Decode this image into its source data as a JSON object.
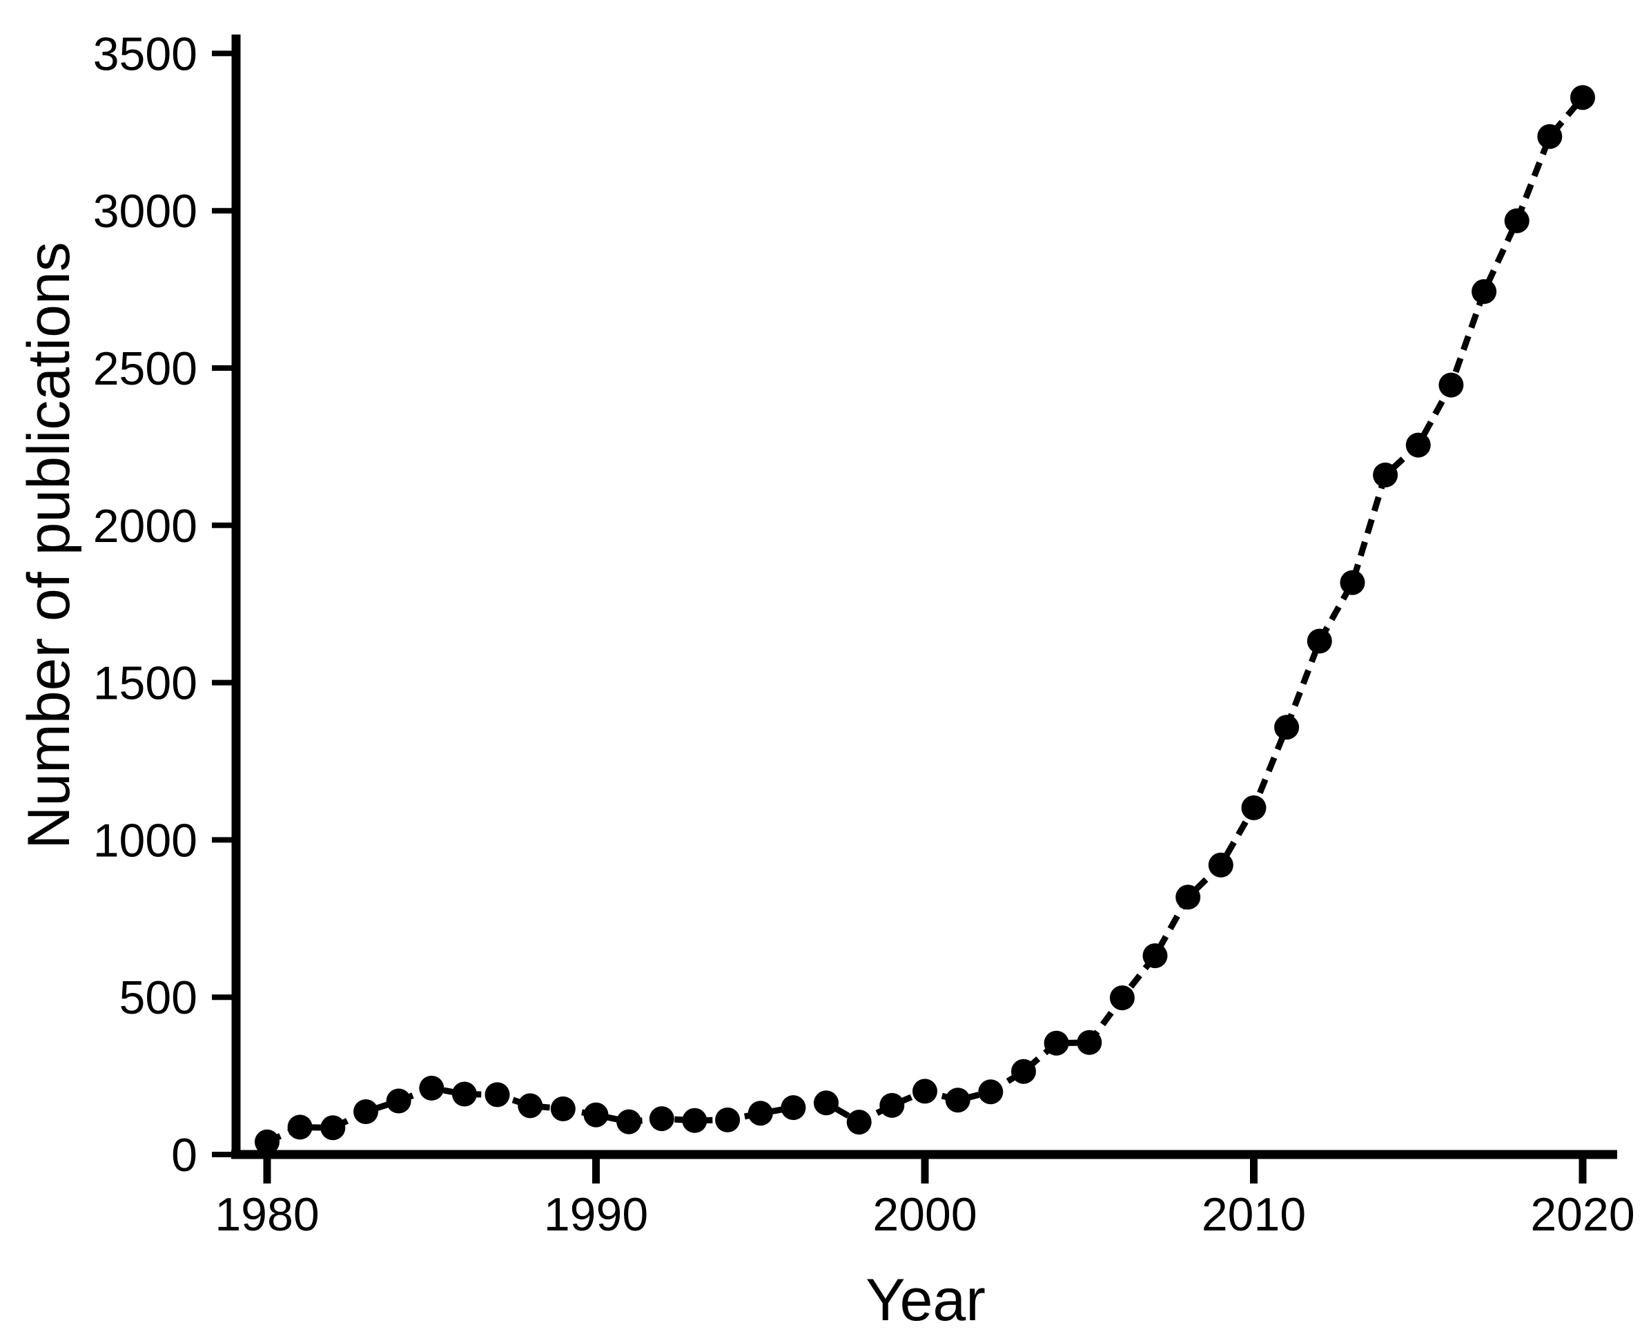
{
  "chart_data": {
    "type": "line",
    "title": "",
    "xlabel": "Year",
    "ylabel": "Number of publications",
    "x": [
      1980,
      1981,
      1982,
      1983,
      1984,
      1985,
      1986,
      1987,
      1988,
      1989,
      1990,
      1991,
      1992,
      1993,
      1994,
      1995,
      1996,
      1997,
      1998,
      1999,
      2000,
      2001,
      2002,
      2003,
      2004,
      2005,
      2006,
      2007,
      2008,
      2009,
      2010,
      2011,
      2012,
      2013,
      2014,
      2015,
      2016,
      2017,
      2018,
      2019,
      2020
    ],
    "series": [
      {
        "name": "Number of publications",
        "values": [
          40,
          87,
          85,
          136,
          170,
          211,
          192,
          190,
          155,
          145,
          126,
          104,
          114,
          108,
          110,
          131,
          149,
          164,
          103,
          156,
          201,
          173,
          199,
          264,
          354,
          356,
          498,
          632,
          818,
          920,
          1102,
          1358,
          1632,
          1818,
          2160,
          2255,
          2446,
          2743,
          2968,
          3236,
          3360
        ]
      }
    ],
    "xticks": [
      1980,
      1990,
      2000,
      2010,
      2020
    ],
    "yticks": [
      0,
      500,
      1000,
      1500,
      2000,
      2500,
      3000,
      3500
    ],
    "xlim": [
      1978.9,
      2021.1
    ],
    "ylim": [
      0,
      3560
    ],
    "grid": false,
    "legend": false,
    "line_style": "dashed",
    "marker": "filled-circle",
    "line_color": "#000000",
    "marker_color": "#000000",
    "background_color": "#ffffff"
  }
}
